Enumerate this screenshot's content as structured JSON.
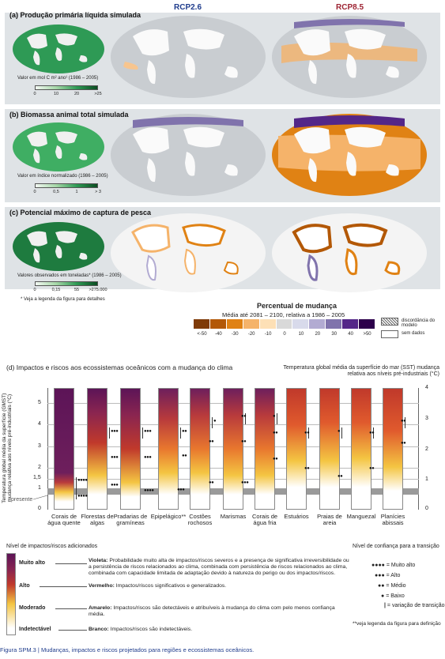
{
  "headers": {
    "rcp26": "RCP2.6",
    "rcp85": "RCP8.5"
  },
  "colors": {
    "rcp26": "#1f3c8c",
    "rcp85": "#9d2332",
    "panel_bg": "#dfe3e6"
  },
  "panel_a": {
    "title": "(a) Produção primária líquida simulada",
    "unit_label": "Valor em mol C m² ano¹ (1986 – 2005)",
    "scale_ticks": [
      "0",
      "10",
      "20",
      ">25"
    ]
  },
  "panel_b": {
    "title": "(b) Biomassa animal total simulada",
    "unit_label": "Valor em índice normalizado (1986 – 2005)",
    "scale_ticks": [
      "0",
      "0,5",
      "1",
      "> 3"
    ]
  },
  "panel_c": {
    "title": "(c) Potencial máximo de captura de pesca",
    "unit_label": "Valores observados em toneladas* (1986 – 2005)",
    "scale_ticks": [
      "0",
      "0,15",
      "55",
      ">275.000"
    ]
  },
  "footnote_maps": "* Veja a legenda da figura para detalhes",
  "change_legend": {
    "title": "Percentual de mudança",
    "subtitle": "Média até 2081 – 2100, relativa a 1986 – 2005",
    "ticks": [
      "<-50",
      "-40",
      "-30",
      "-20",
      "-10",
      "0",
      "10",
      "20",
      "30",
      "40",
      ">50"
    ],
    "colors": [
      "#7f3b08",
      "#b35806",
      "#e08214",
      "#f5b36a",
      "#fde0b6",
      "#d9d9d9",
      "#d8daeb",
      "#b2abd2",
      "#8073ac",
      "#542788",
      "#2d004b"
    ],
    "model_disagreement": "discordância do modelo",
    "no_data": "sem dados"
  },
  "panel_d": {
    "title": "(d) Impactos e riscos aos ecossistemas oceânicos com a mudança do clima",
    "left_axis_label": "Temperatura global média da superfície (GMST) mudança relativa aos níveis pré-industriais (°C)",
    "right_axis_label": "Temperatura global média da superfície do mar (SST) mudança relativa aos níveis pré-industriais (°C)",
    "left_ticks": [
      "5",
      "4",
      "3",
      "2",
      "1,5",
      "1",
      "0"
    ],
    "right_ticks": [
      "4",
      "3",
      "2",
      "1",
      "0"
    ],
    "present_label": "presente",
    "categories": [
      "Corais de água quente",
      "Florestas de algas",
      "Pradarias de gramíneas",
      "Epipelágico**",
      "Costões rochosos",
      "Marismas",
      "Corais de água fria",
      "Estuários",
      "Praias de areia",
      "Manguezal",
      "Planícies abissais"
    ],
    "confidence_marks": [
      [
        "●●●●",
        "●●●●"
      ],
      [
        "●●●",
        "●●●",
        "●●●"
      ],
      [
        "●●●",
        "●●●",
        "●●●●"
      ],
      [
        "●●",
        "●●",
        "●●●"
      ],
      [
        "●",
        "●●",
        "●●"
      ],
      [
        "●●",
        "●●",
        "●●●"
      ],
      [
        "●",
        "●●",
        "●●"
      ],
      [
        "●●",
        "●●"
      ],
      [
        "●",
        "●●"
      ],
      [
        "●●",
        "●●"
      ],
      [
        "●●",
        "●●"
      ]
    ],
    "risk_legend_title": "Nível de impactos/riscos adicionados",
    "risk_levels": [
      {
        "label": "Muito alto",
        "term": "Violeta:",
        "desc": "Probabilidade muito alta de impactos/riscos severos e a presença de significativa irreversibilidade ou a persistência de riscos relacionados ao clima, combinada com persistência de riscos relacionados ao clima, combinada com capacidade limitada de adaptação devido à natureza do perigo ou dos impactos/riscos."
      },
      {
        "label": "Alto",
        "term": "Vermelho:",
        "desc": "Impactos/riscos significativos e generalizados."
      },
      {
        "label": "Moderado",
        "term": "Amarelo:",
        "desc": "Impactos/riscos são detectáveis e atribuíveis à mudança do clima com pelo menos confiança média."
      },
      {
        "label": "Indetectável",
        "term": "Branco:",
        "desc": "Impactos/riscos são indetectáveis."
      }
    ],
    "confidence_legend_title": "Nível de confiança para a transição",
    "confidence_levels": [
      {
        "dots": "●●●●",
        "label": "= Muito alto"
      },
      {
        "dots": "●●●",
        "label": "= Alto"
      },
      {
        "dots": "●●",
        "label": "= Médio"
      },
      {
        "dots": "●",
        "label": "= Baixo"
      },
      {
        "dots": "|",
        "label": "= variação de transição"
      }
    ],
    "definition_note": "**veja legenda da figura para definição"
  },
  "caption": "Figura SPM.3 | Mudanças, impactos e riscos projetados para regiões e ecossistemas oceânicos."
}
